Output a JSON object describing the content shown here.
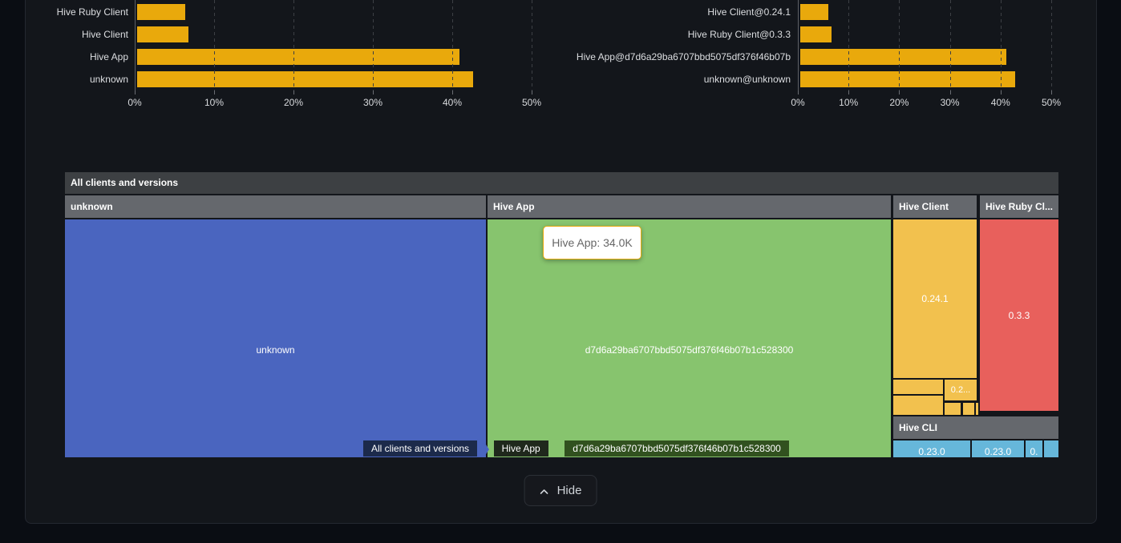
{
  "colors": {
    "page_bg": "#0a0d13",
    "card_bg": "#13161b",
    "card_border": "#242830",
    "bar": "#e9a90c",
    "root_header_bg": "#3d4043",
    "section_header_bg": "#65686d",
    "tooltip_border": "#e9a90c"
  },
  "chart_data": [
    {
      "type": "bar",
      "orientation": "horizontal",
      "categories": [
        "Hive Ruby Client",
        "Hive Client",
        "Hive App",
        "unknown"
      ],
      "values": [
        6.1,
        6.5,
        40.6,
        42.3
      ],
      "value_unit": "percent",
      "xlim": [
        0,
        50
      ],
      "xticks": [
        "0%",
        "10%",
        "20%",
        "30%",
        "40%",
        "50%"
      ],
      "grid": "dashed-vertical",
      "legend": false,
      "title": ""
    },
    {
      "type": "bar",
      "orientation": "horizontal",
      "categories": [
        "Hive Client@0.24.1",
        "Hive Ruby Client@0.3.3",
        "Hive App@d7d6a29ba6707bbd5075df376f46b07b",
        "unknown@unknown"
      ],
      "values": [
        5.5,
        6.2,
        40.7,
        42.4
      ],
      "value_unit": "percent",
      "xlim": [
        0,
        50
      ],
      "xticks": [
        "0%",
        "10%",
        "20%",
        "30%",
        "40%",
        "50%"
      ],
      "grid": "dashed-vertical",
      "legend": false,
      "title": ""
    },
    {
      "type": "treemap",
      "title": "All clients and versions",
      "tooltip": {
        "text": "Hive App: 34.0K",
        "border": "#e9a90c"
      },
      "nodes": [
        {
          "name": "unknown",
          "color": "#4a65bf",
          "tile_label": "unknown"
        },
        {
          "name": "Hive App",
          "color": "#87c46e",
          "tile_label": "d7d6a29ba6707bbd5075df376f46b07b1c528300",
          "tooltip_value": "34.0K"
        },
        {
          "name": "Hive Client",
          "color": "#f2c14e",
          "tiles": [
            "0.24.1",
            "0.2...",
            "",
            "",
            "",
            ""
          ]
        },
        {
          "name": "Hive Ruby Cl...",
          "color": "#e8605c",
          "tiles": [
            "0.3.3"
          ]
        },
        {
          "name": "Hive CLI",
          "color": "#66b7da",
          "tiles": [
            "0.23.0",
            "0.23.0",
            "0.",
            ""
          ]
        }
      ],
      "breadcrumb": {
        "separator": "❯",
        "items": [
          {
            "label": "All clients and versions",
            "color": "#4a65bf",
            "bg": "#1c2a4b"
          },
          {
            "label": "Hive App",
            "color": "#87c46e",
            "bg": "#1f281c"
          },
          {
            "label": "d7d6a29ba6707bbd5075df376f46b07b1c528300",
            "color": "#87c46e",
            "bg": "#31511f"
          }
        ]
      }
    }
  ],
  "footer": {
    "hide_label": "Hide"
  }
}
